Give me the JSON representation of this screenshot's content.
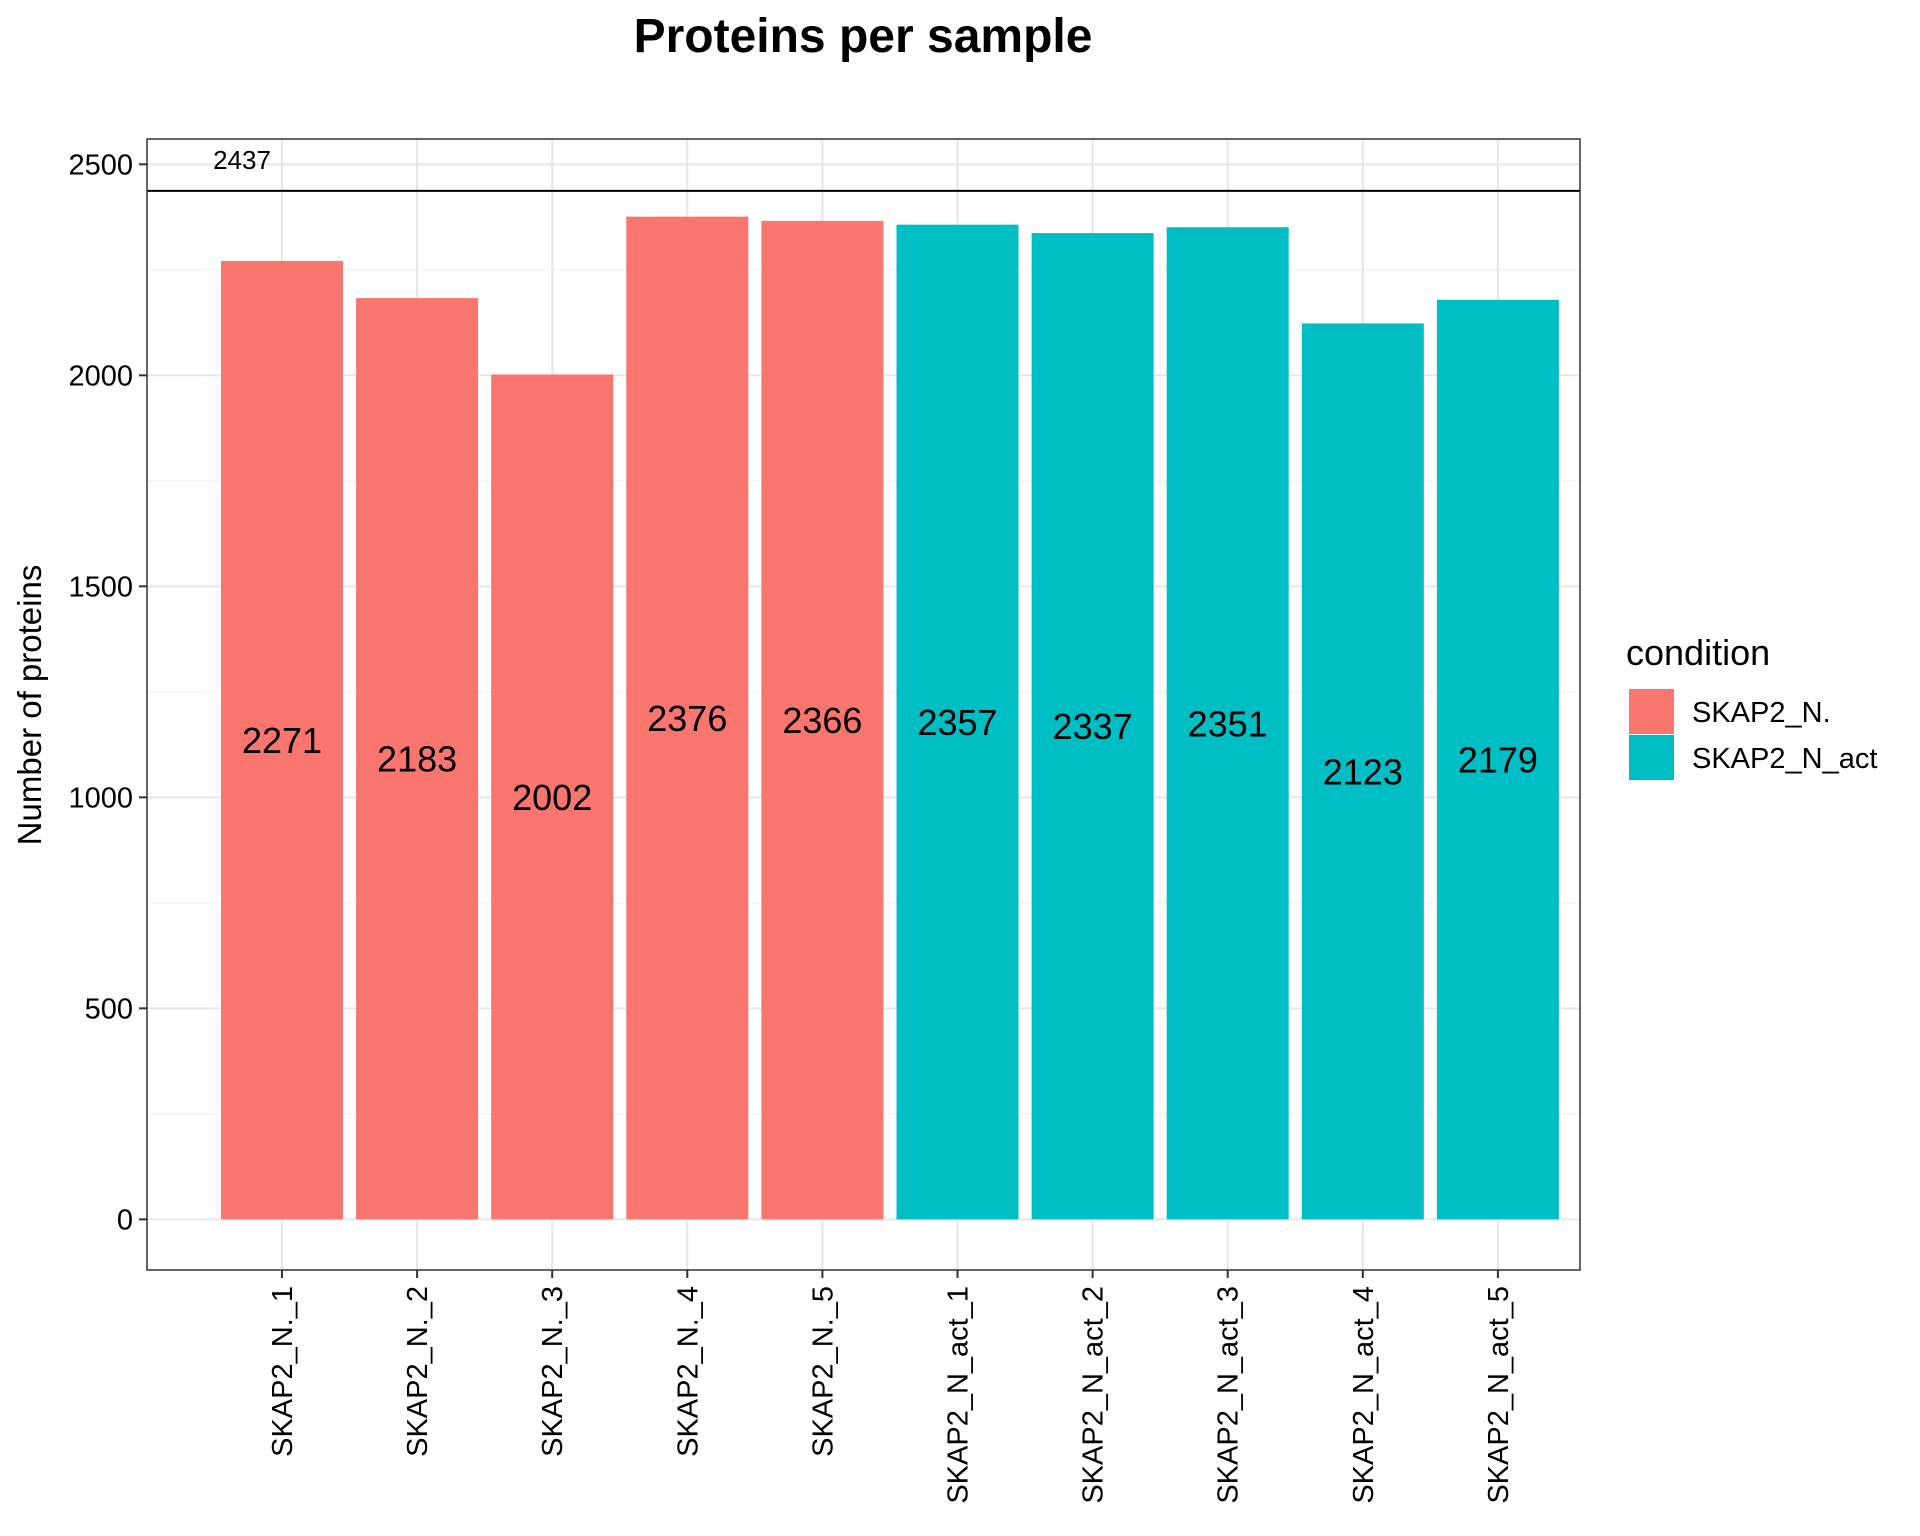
{
  "chart_data": {
    "type": "bar",
    "title": "Proteins per sample",
    "xlabel": "",
    "ylabel": "Number of proteins",
    "ylim": [
      -120,
      2560
    ],
    "yticks": [
      0,
      500,
      1000,
      1500,
      2000,
      2500
    ],
    "grid": true,
    "categories": [
      "SKAP2_N._1",
      "SKAP2_N._2",
      "SKAP2_N._3",
      "SKAP2_N._4",
      "SKAP2_N._5",
      "SKAP2_N_act_1",
      "SKAP2_N_act_2",
      "SKAP2_N_act_3",
      "SKAP2_N_act_4",
      "SKAP2_N_act_5"
    ],
    "values": [
      2271,
      2183,
      2002,
      2376,
      2366,
      2357,
      2337,
      2351,
      2123,
      2179
    ],
    "groups": [
      "SKAP2_N.",
      "SKAP2_N.",
      "SKAP2_N.",
      "SKAP2_N.",
      "SKAP2_N.",
      "SKAP2_N_act",
      "SKAP2_N_act",
      "SKAP2_N_act",
      "SKAP2_N_act",
      "SKAP2_N_act"
    ],
    "reference_line": {
      "value": 2437,
      "label": "2437"
    },
    "legend": {
      "title": "condition",
      "position": "right",
      "entries": [
        {
          "name": "SKAP2_N.",
          "color": "#F8766D"
        },
        {
          "name": "SKAP2_N_act",
          "color": "#00BFC4"
        }
      ]
    }
  }
}
